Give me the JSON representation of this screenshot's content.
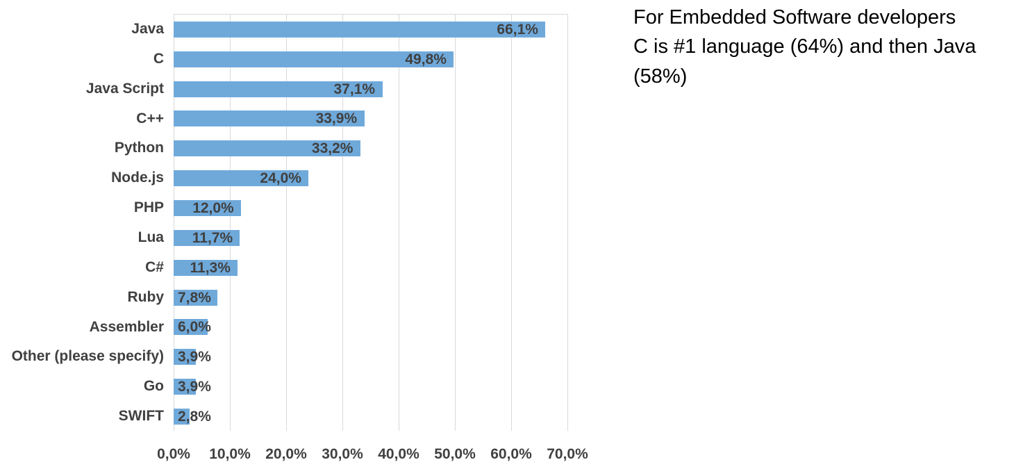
{
  "annotation": {
    "text": "For Embedded Software developers C is #1 language (64%) and then Java (58%)",
    "lines": [
      "For Embedded Software developers",
      "C is #1 language (64%) and then Java",
      "(58%)"
    ]
  },
  "chart_data": {
    "type": "bar",
    "orientation": "horizontal",
    "categories": [
      "Java",
      "C",
      "Java Script",
      "C++",
      "Python",
      "Node.js",
      "PHP",
      "Lua",
      "C#",
      "Ruby",
      "Assembler",
      "Other (please specify)",
      "Go",
      "SWIFT"
    ],
    "values": [
      66.1,
      49.8,
      37.1,
      33.9,
      33.2,
      24.0,
      12.0,
      11.7,
      11.3,
      7.8,
      6.0,
      3.9,
      3.9,
      2.8
    ],
    "value_labels": [
      "66,1%",
      "49,8%",
      "37,1%",
      "33,9%",
      "33,2%",
      "24,0%",
      "12,0%",
      "11,7%",
      "11,3%",
      "7,8%",
      "6,0%",
      "3,9%",
      "3,9%",
      "2,8%"
    ],
    "x_tick_values": [
      0,
      10,
      20,
      30,
      40,
      50,
      60,
      70
    ],
    "x_tick_labels": [
      "0,0%",
      "10,0%",
      "20,0%",
      "30,0%",
      "40,0%",
      "50,0%",
      "60,0%",
      "70,0%"
    ],
    "xlim": [
      0,
      70
    ],
    "grid": true,
    "legend": false,
    "bar_color": "#6FA9DA",
    "grid_color": "#D9D9D9",
    "text_color": "#404040"
  }
}
